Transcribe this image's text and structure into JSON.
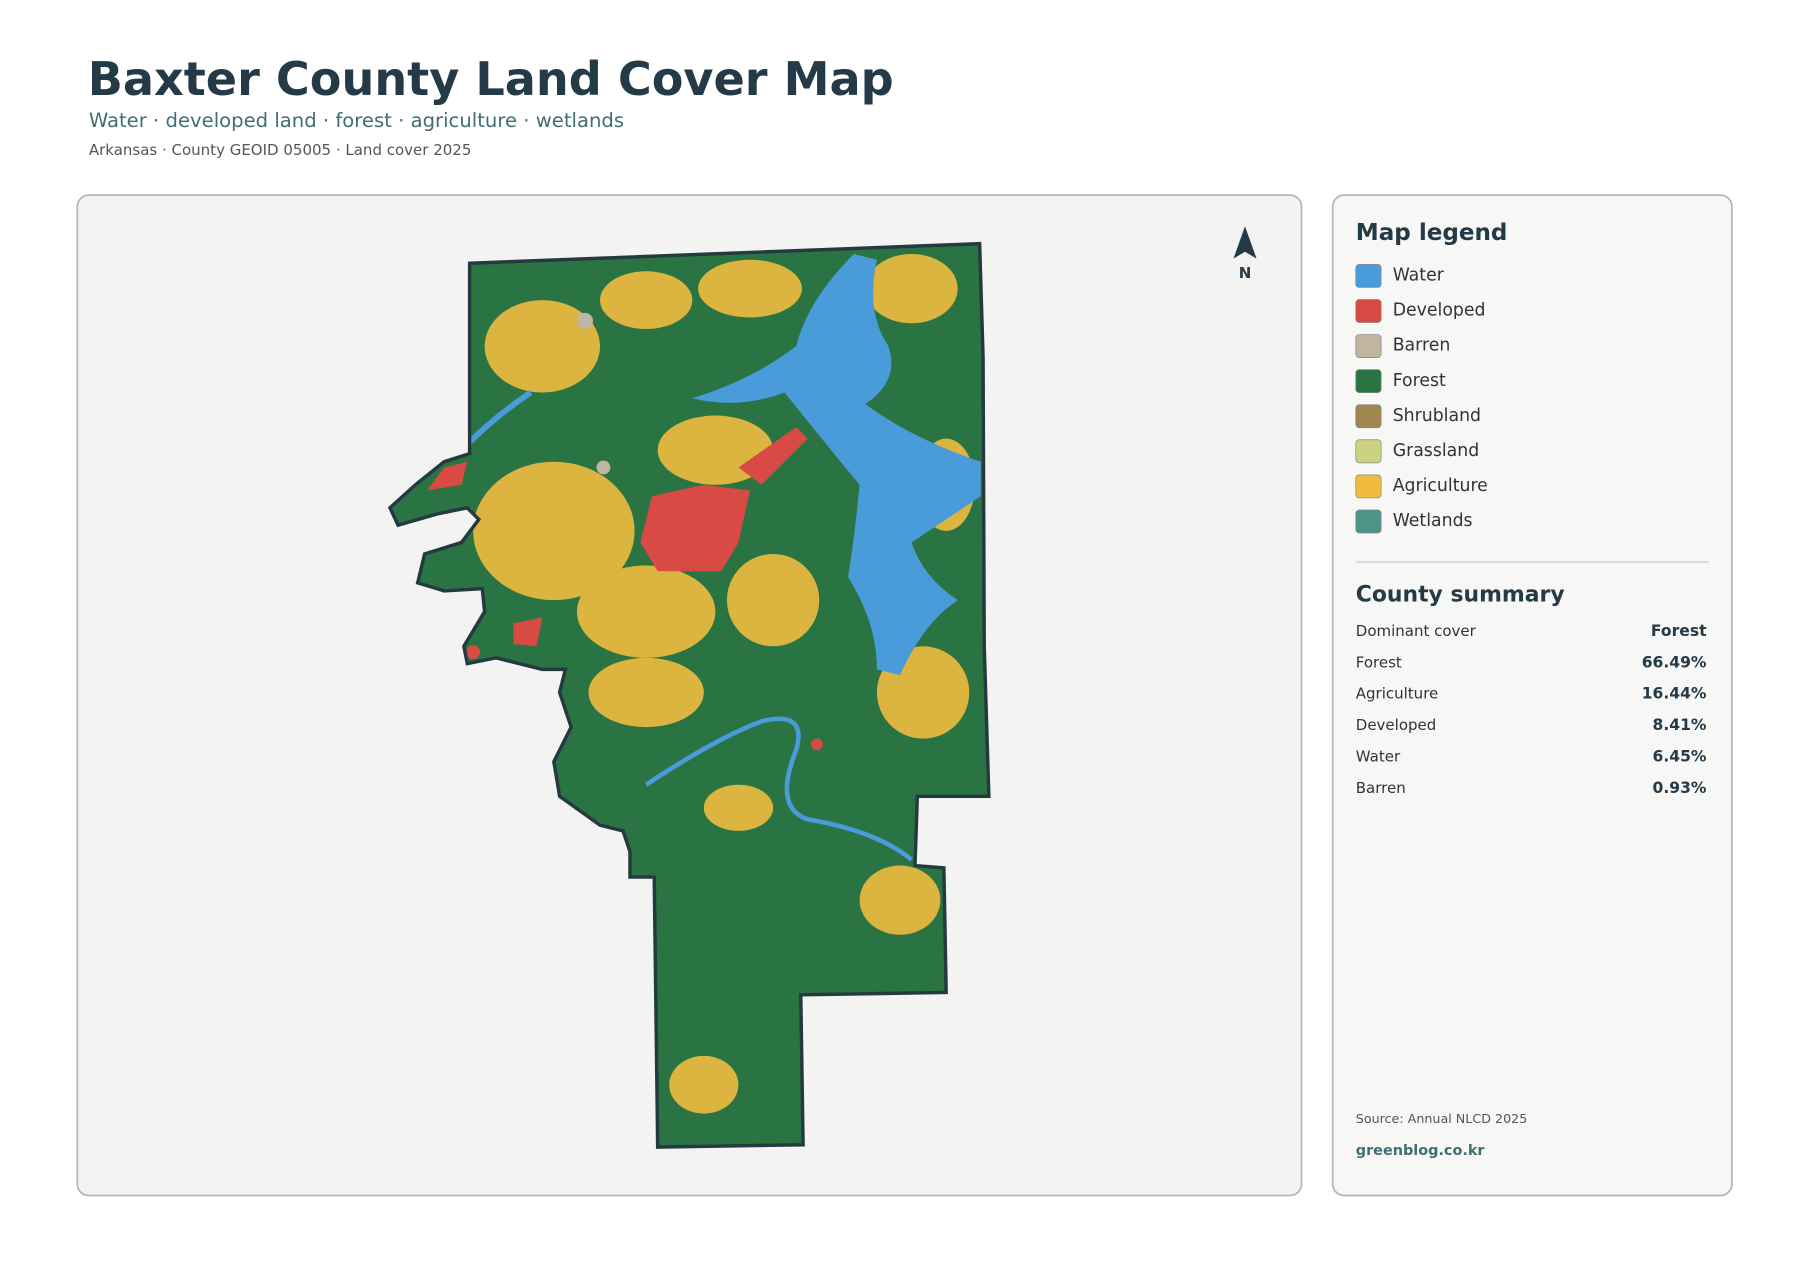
{
  "header": {
    "title": "Baxter County Land Cover Map",
    "subtitle": "Water · developed land · forest · agriculture · wetlands",
    "meta": "Arkansas · County GEOID 05005 · Land cover 2025"
  },
  "map": {
    "north_label": "N"
  },
  "legend": {
    "title": "Map legend",
    "items": [
      {
        "label": "Water",
        "color": "#4a9bd9"
      },
      {
        "label": "Developed",
        "color": "#d94a45"
      },
      {
        "label": "Barren",
        "color": "#bfb5a0"
      },
      {
        "label": "Forest",
        "color": "#2a7443"
      },
      {
        "label": "Shrubland",
        "color": "#a08750"
      },
      {
        "label": "Grassland",
        "color": "#cdd283"
      },
      {
        "label": "Agriculture",
        "color": "#f0bc40"
      },
      {
        "label": "Wetlands",
        "color": "#4e9388"
      }
    ]
  },
  "summary": {
    "title": "County summary",
    "rows": [
      [
        "Dominant cover",
        "Forest"
      ],
      [
        "Forest",
        "66.49%"
      ],
      [
        "Agriculture",
        "16.44%"
      ],
      [
        "Developed",
        "8.41%"
      ],
      [
        "Water",
        "6.45%"
      ],
      [
        "Barren",
        "0.93%"
      ]
    ]
  },
  "footer": {
    "source": "Source: Annual NLCD 2025",
    "site": "greenblog.co.kr"
  }
}
